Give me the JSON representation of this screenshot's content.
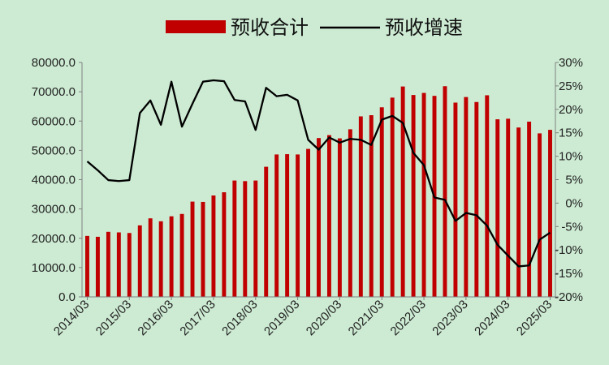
{
  "chart_data": {
    "type": "bar+line",
    "legend": {
      "placement": "top-center",
      "bar_label": "预收合计",
      "line_label": "预收增速"
    },
    "colors": {
      "bar": "#c00000",
      "line": "#000000",
      "background": "#cdebd3"
    },
    "x_tick_labels": [
      "2014/03",
      "2015/03",
      "2016/03",
      "2017/03",
      "2018/03",
      "2019/03",
      "2020/03",
      "2021/03",
      "2022/03",
      "2023/03",
      "2024/03",
      "2025/03"
    ],
    "y_left": {
      "min": 0,
      "max": 80000,
      "tick_labels": [
        "0.0",
        "10000.0",
        "20000.0",
        "30000.0",
        "40000.0",
        "50000.0",
        "60000.0",
        "70000.0",
        "80000.0"
      ]
    },
    "y_right": {
      "min": -20,
      "max": 30,
      "unit": "%",
      "tick_labels": [
        "-20%",
        "-15%",
        "-10%",
        "-5%",
        "0%",
        "5%",
        "10%",
        "15%",
        "20%",
        "25%",
        "30%"
      ]
    },
    "grid": false,
    "x": [
      "2014/03",
      "2014/06",
      "2014/09",
      "2014/12",
      "2015/03",
      "2015/06",
      "2015/09",
      "2015/12",
      "2016/03",
      "2016/06",
      "2016/09",
      "2016/12",
      "2017/03",
      "2017/06",
      "2017/09",
      "2017/12",
      "2018/03",
      "2018/06",
      "2018/09",
      "2018/12",
      "2019/03",
      "2019/06",
      "2019/09",
      "2019/12",
      "2020/03",
      "2020/06",
      "2020/09",
      "2020/12",
      "2021/03",
      "2021/06",
      "2021/09",
      "2021/12",
      "2022/03",
      "2022/06",
      "2022/09",
      "2022/12",
      "2023/03",
      "2023/06",
      "2023/09",
      "2023/12",
      "2024/03",
      "2024/06",
      "2024/09",
      "2024/12",
      "2025/03"
    ],
    "series": [
      {
        "name": "预收合计",
        "type": "bar",
        "axis": "left",
        "values": [
          20800,
          20500,
          22200,
          22000,
          21800,
          24400,
          26800,
          25800,
          27500,
          28300,
          32500,
          32400,
          34600,
          35700,
          39700,
          39500,
          39700,
          44400,
          48600,
          48700,
          48600,
          50500,
          54200,
          55200,
          54100,
          57200,
          61600,
          62000,
          64700,
          68000,
          71800,
          68900,
          69600,
          68600,
          71900,
          66300,
          68200,
          66500,
          68800,
          60600,
          60800,
          57800,
          59800,
          55800,
          57000
        ]
      },
      {
        "name": "预收增速",
        "type": "line",
        "axis": "right",
        "values": [
          8.9,
          7.0,
          4.9,
          4.7,
          4.9,
          19.2,
          21.9,
          16.7,
          25.9,
          16.3,
          21.2,
          25.9,
          26.2,
          26.0,
          22.0,
          21.7,
          15.6,
          24.6,
          22.8,
          23.1,
          21.9,
          13.5,
          11.4,
          14.0,
          12.9,
          13.7,
          13.5,
          12.4,
          17.8,
          18.6,
          17.1,
          10.7,
          8.1,
          1.2,
          0.7,
          -3.8,
          -2.1,
          -2.6,
          -4.8,
          -8.9,
          -11.2,
          -13.5,
          -13.3,
          -7.8,
          -6.3
        ]
      }
    ]
  }
}
